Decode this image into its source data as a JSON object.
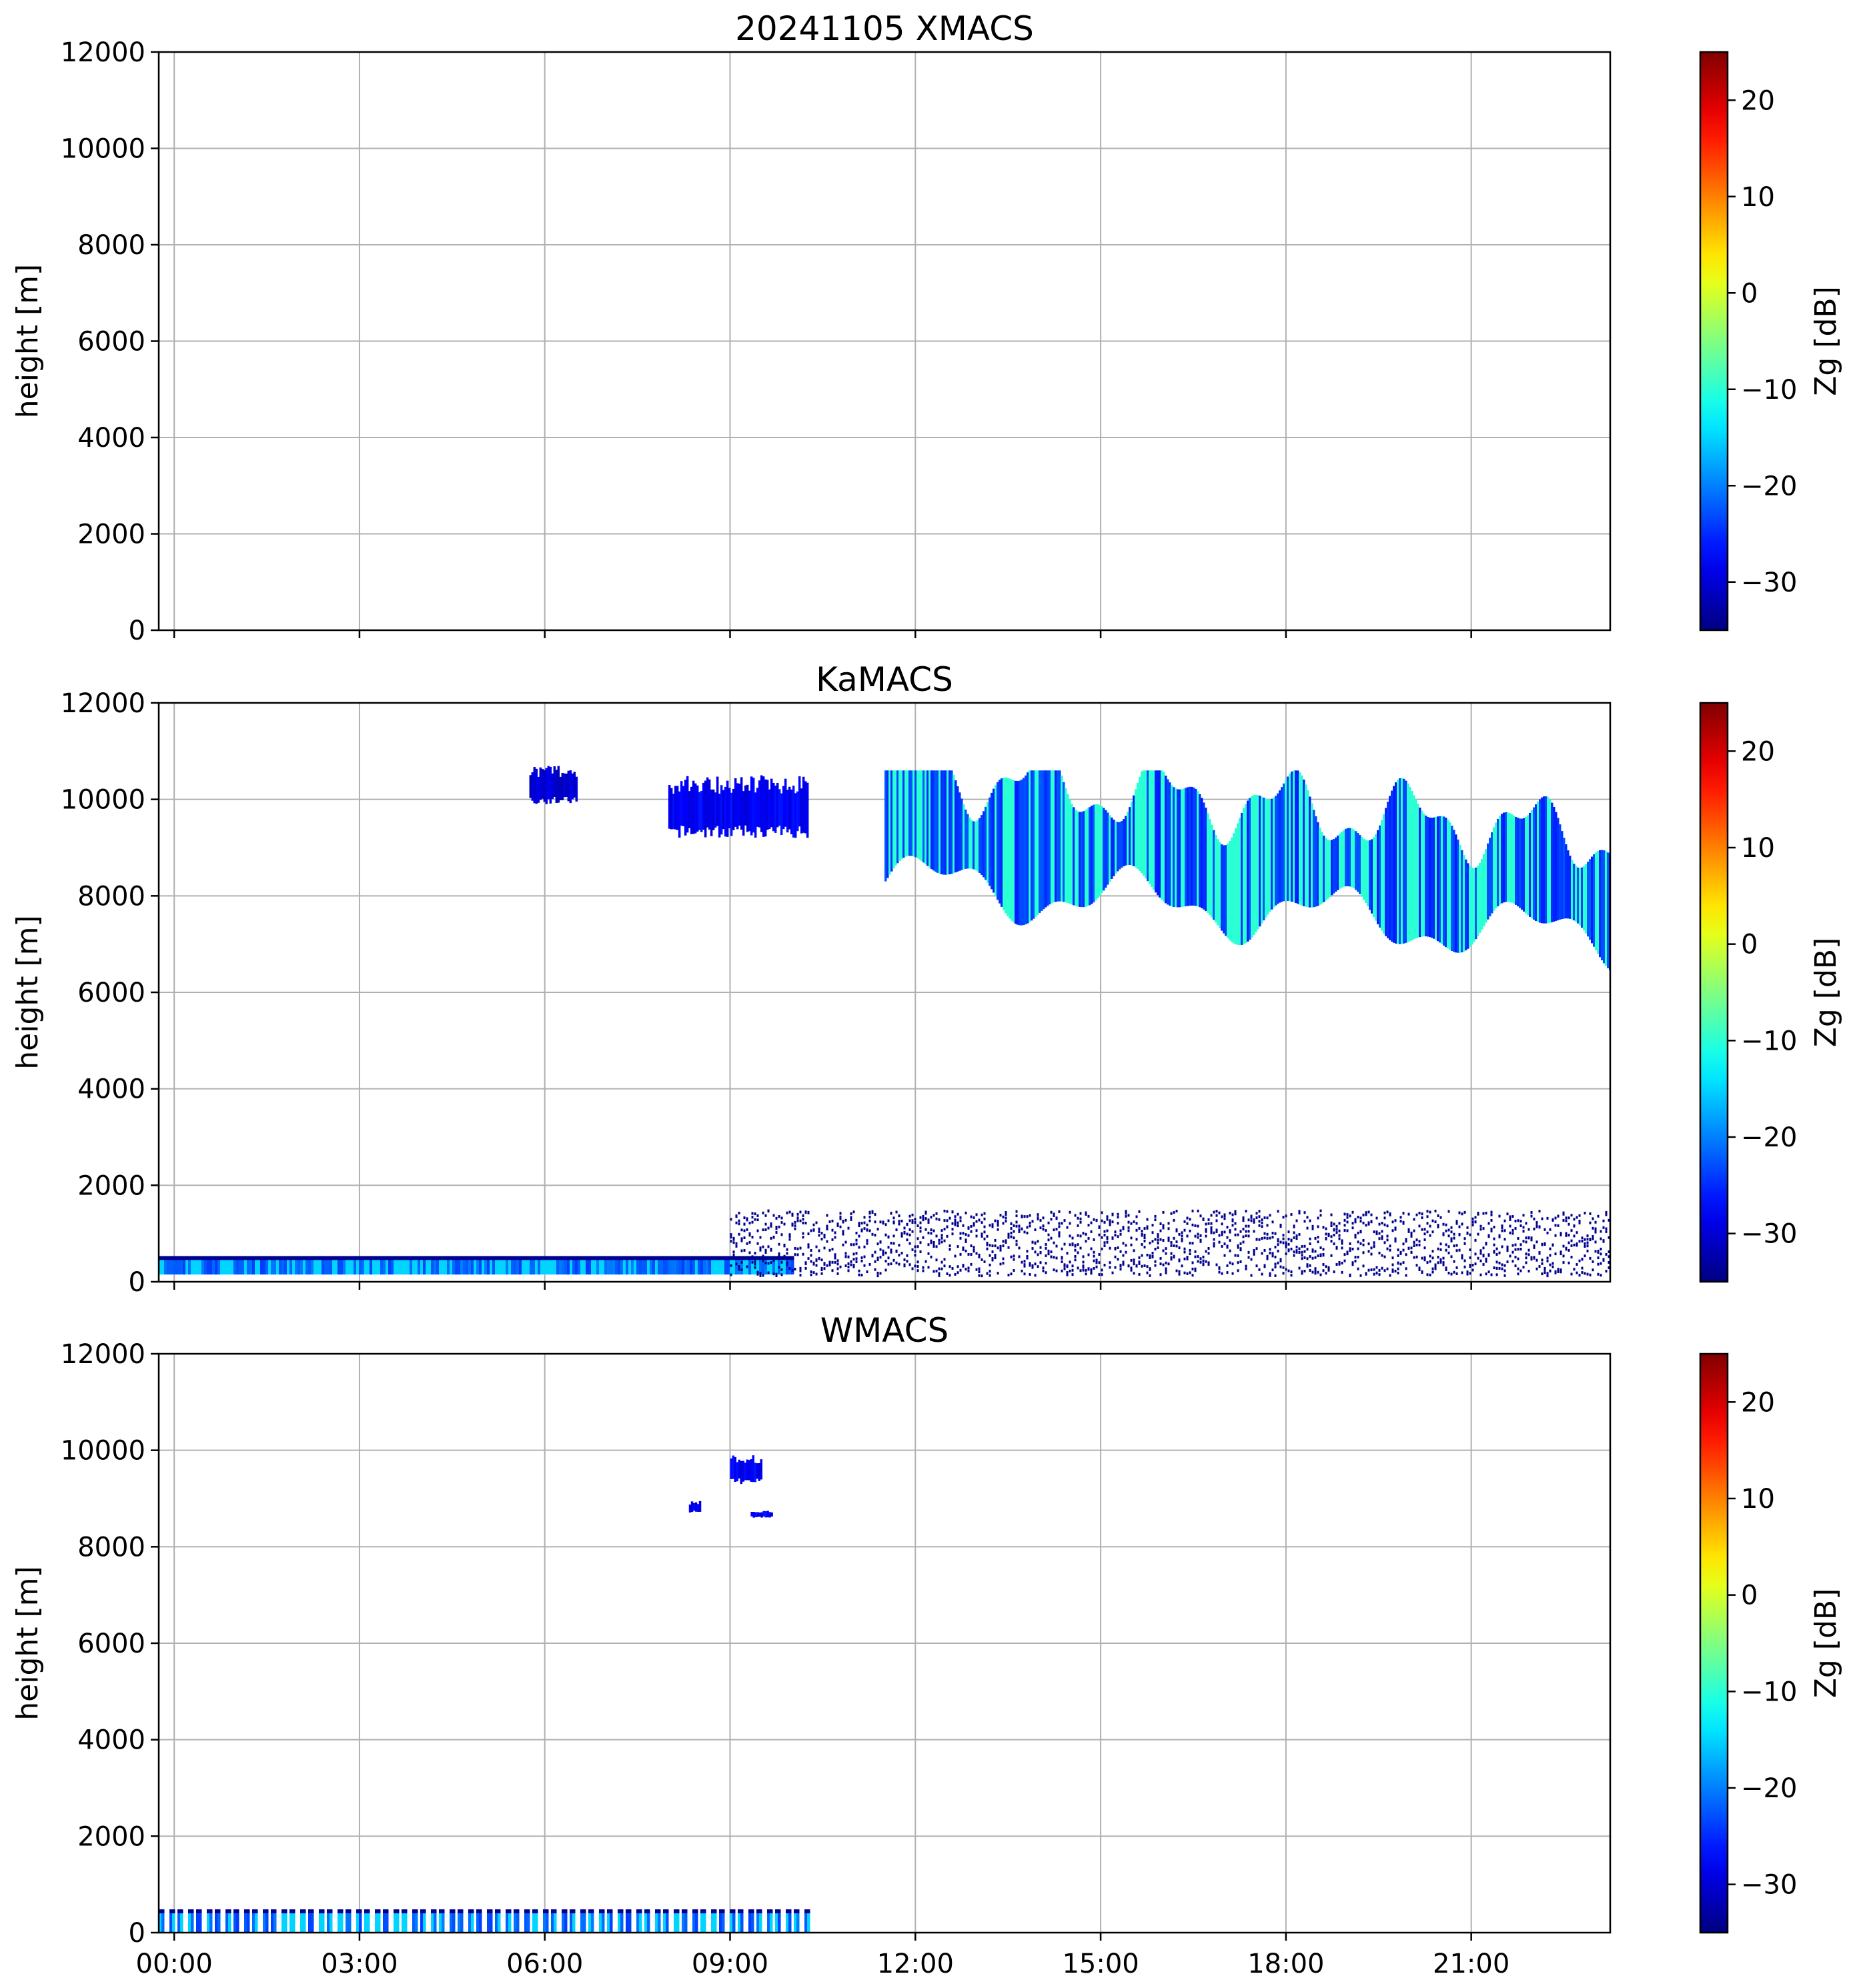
{
  "chart_data": [
    {
      "type": "heatmap",
      "title": "20241105 XMACS",
      "xlabel": "",
      "ylabel": "height [m]",
      "xlim": [
        "-00:15",
        "23:15"
      ],
      "ylim": [
        0,
        12000
      ],
      "xticks": [
        "00:00",
        "03:00",
        "06:00",
        "09:00",
        "12:00",
        "15:00",
        "18:00",
        "21:00"
      ],
      "yticks": [
        0,
        2000,
        4000,
        6000,
        8000,
        10000,
        12000
      ],
      "grid": true,
      "show_xtick_labels": false,
      "colorbar": {
        "label": "Zg [dB]",
        "range": [
          -35,
          25
        ],
        "ticks": [
          "20",
          "10",
          "0",
          "−10",
          "−20",
          "−30"
        ],
        "colormap": "jet"
      },
      "regions": []
    },
    {
      "type": "heatmap",
      "title": "KaMACS",
      "xlabel": "",
      "ylabel": "height [m]",
      "xlim": [
        "-00:15",
        "23:15"
      ],
      "ylim": [
        0,
        12000
      ],
      "xticks": [
        "00:00",
        "03:00",
        "06:00",
        "09:00",
        "12:00",
        "15:00",
        "18:00",
        "21:00"
      ],
      "yticks": [
        0,
        2000,
        4000,
        6000,
        8000,
        10000,
        12000
      ],
      "grid": true,
      "show_xtick_labels": false,
      "colorbar": {
        "label": "Zg [dB]",
        "range": [
          -35,
          25
        ],
        "ticks": [
          "20",
          "10",
          "0",
          "−10",
          "−20",
          "−30"
        ],
        "colormap": "jet"
      },
      "regions": [
        {
          "feature": "upper cloud layer",
          "t_start": "11:30",
          "t_end": "23:15",
          "h_low": 6400,
          "h_high": 10600,
          "zg_typical": -24,
          "zg_max": -10
        },
        {
          "feature": "upper cloud fragments",
          "t_start": "08:00",
          "t_end": "10:15",
          "h_low": 9200,
          "h_high": 10500,
          "zg_typical": -28
        },
        {
          "feature": "upper cloud fragments",
          "t_start": "05:45",
          "t_end": "06:30",
          "h_low": 9900,
          "h_high": 10700,
          "zg_typical": -30
        },
        {
          "feature": "boundary layer echo",
          "t_start": "-00:15",
          "t_end": "10:00",
          "h_low": 150,
          "h_high": 450,
          "zg_typical": -22,
          "zg_max": -15
        },
        {
          "feature": "boundary layer echo",
          "t_start": "09:00",
          "t_end": "23:15",
          "h_low": 150,
          "h_high": 1500,
          "zg_typical": -32
        }
      ]
    },
    {
      "type": "heatmap",
      "title": "WMACS",
      "xlabel": "",
      "ylabel": "height [m]",
      "xlim": [
        "-00:15",
        "23:15"
      ],
      "ylim": [
        0,
        12000
      ],
      "xticks": [
        "00:00",
        "03:00",
        "06:00",
        "09:00",
        "12:00",
        "15:00",
        "18:00",
        "21:00"
      ],
      "yticks": [
        0,
        2000,
        4000,
        6000,
        8000,
        10000,
        12000
      ],
      "grid": true,
      "show_xtick_labels": true,
      "colorbar": {
        "label": "Zg [dB]",
        "range": [
          -35,
          25
        ],
        "ticks": [
          "20",
          "10",
          "0",
          "−10",
          "−20",
          "−30"
        ],
        "colormap": "jet"
      },
      "regions": [
        {
          "feature": "near-surface echo",
          "t_start": "-00:15",
          "t_end": "10:15",
          "h_low": 0,
          "h_high": 400,
          "zg_typical": -22,
          "zg_max": -15
        },
        {
          "feature": "upper cloud fragment",
          "t_start": "09:00",
          "t_end": "09:30",
          "h_low": 9300,
          "h_high": 9900,
          "zg_typical": -28
        },
        {
          "feature": "upper cloud fragment",
          "t_start": "08:20",
          "t_end": "08:30",
          "h_low": 8700,
          "h_high": 8950,
          "zg_typical": -28
        },
        {
          "feature": "upper cloud fragment",
          "t_start": "09:20",
          "t_end": "09:40",
          "h_low": 8600,
          "h_high": 8750,
          "zg_typical": -28
        }
      ]
    }
  ]
}
